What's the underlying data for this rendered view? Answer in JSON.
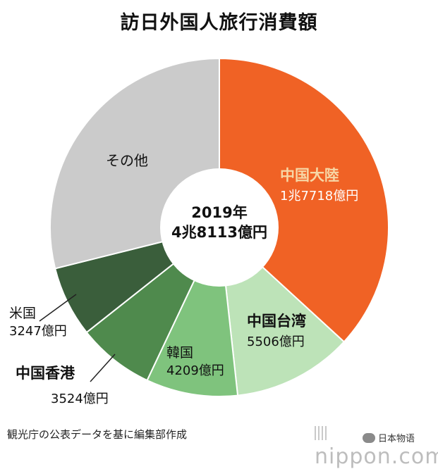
{
  "title": "訪日外国人旅行消費額",
  "center": {
    "line1": "2019年",
    "line2": "4兆8113億円"
  },
  "source": "観光庁の公表データを基に編集部作成",
  "watermark": "nippon.com",
  "wechat": "日本物语",
  "chart_data": {
    "type": "pie",
    "style": "donut",
    "title": "訪日外国人旅行消費額",
    "total_label": "4兆8113億円",
    "year": "2019年",
    "slices": [
      {
        "name": "中国大陸",
        "value_label": "1兆7718億円",
        "value": 17718,
        "color": "#f06225"
      },
      {
        "name": "中国台湾",
        "value_label": "5506億円",
        "value": 5506,
        "color": "#bde3b8"
      },
      {
        "name": "韓国",
        "value_label": "4209億円",
        "value": 4209,
        "color": "#7fc37d"
      },
      {
        "name": "中国香港",
        "value_label": "3524億円",
        "value": 3524,
        "color": "#4f8a4d"
      },
      {
        "name": "米国",
        "value_label": "3247億円",
        "value": 3247,
        "color": "#3a5e3b"
      },
      {
        "name": "その他",
        "value": 13909,
        "color": "#cbcbcb"
      }
    ]
  }
}
